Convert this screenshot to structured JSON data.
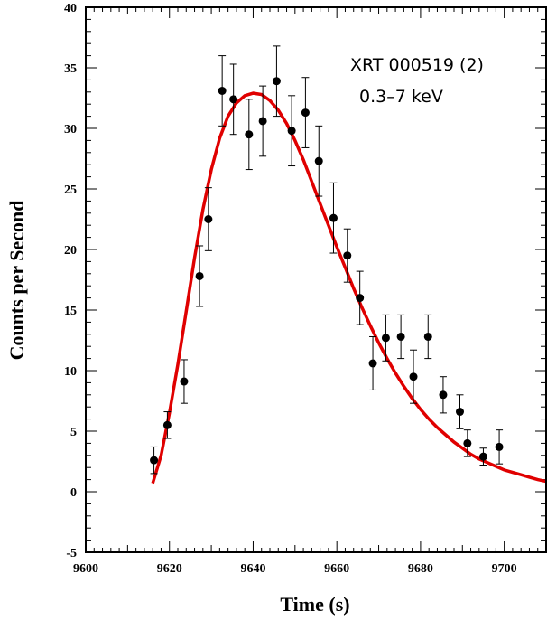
{
  "chart_data": {
    "type": "scatter",
    "xlabel": "Time (s)",
    "ylabel": "Counts per Second",
    "xlim": [
      9600,
      9710
    ],
    "ylim": [
      -5,
      40
    ],
    "x_ticks": [
      9600,
      9620,
      9640,
      9660,
      9680,
      9700
    ],
    "y_ticks": [
      -5,
      0,
      5,
      10,
      15,
      20,
      25,
      30,
      35,
      40
    ],
    "grid": false,
    "annotations": [
      "XRT 000519 (2)",
      "0.3–7 keV"
    ],
    "colors": {
      "points": "#000000",
      "fit": "#e00000"
    },
    "points": [
      {
        "x": 9616.3,
        "y": 2.6,
        "err": 1.1
      },
      {
        "x": 9619.5,
        "y": 5.5,
        "err": 1.1
      },
      {
        "x": 9623.5,
        "y": 9.1,
        "err": 1.8
      },
      {
        "x": 9627.2,
        "y": 17.8,
        "err": 2.5
      },
      {
        "x": 9629.3,
        "y": 22.5,
        "err": 2.6
      },
      {
        "x": 9632.6,
        "y": 33.1,
        "err": 2.9
      },
      {
        "x": 9635.3,
        "y": 32.4,
        "err": 2.9
      },
      {
        "x": 9639.0,
        "y": 29.5,
        "err": 2.9
      },
      {
        "x": 9642.3,
        "y": 30.6,
        "err": 2.9
      },
      {
        "x": 9645.6,
        "y": 33.9,
        "err": 2.9
      },
      {
        "x": 9649.2,
        "y": 29.8,
        "err": 2.9
      },
      {
        "x": 9652.5,
        "y": 31.3,
        "err": 2.9
      },
      {
        "x": 9655.7,
        "y": 27.3,
        "err": 2.9
      },
      {
        "x": 9659.2,
        "y": 22.6,
        "err": 2.9
      },
      {
        "x": 9662.5,
        "y": 19.5,
        "err": 2.2
      },
      {
        "x": 9665.5,
        "y": 16.0,
        "err": 2.2
      },
      {
        "x": 9668.6,
        "y": 10.6,
        "err": 2.2
      },
      {
        "x": 9671.7,
        "y": 12.7,
        "err": 1.9
      },
      {
        "x": 9675.3,
        "y": 12.8,
        "err": 1.8
      },
      {
        "x": 9678.3,
        "y": 9.5,
        "err": 2.2
      },
      {
        "x": 9681.8,
        "y": 12.8,
        "err": 1.8
      },
      {
        "x": 9685.4,
        "y": 8.0,
        "err": 1.5
      },
      {
        "x": 9689.4,
        "y": 6.6,
        "err": 1.4
      },
      {
        "x": 9691.2,
        "y": 4.0,
        "err": 1.1
      },
      {
        "x": 9695.0,
        "y": 2.9,
        "err": 0.7
      },
      {
        "x": 9698.8,
        "y": 3.7,
        "err": 1.4
      }
    ],
    "fit_curve": [
      [
        9616,
        0.7
      ],
      [
        9618,
        3.0
      ],
      [
        9620,
        6.5
      ],
      [
        9622,
        10.5
      ],
      [
        9624,
        14.9
      ],
      [
        9626,
        19.3
      ],
      [
        9628,
        23.3
      ],
      [
        9630,
        26.6
      ],
      [
        9632,
        29.2
      ],
      [
        9634,
        31.0
      ],
      [
        9636,
        32.1
      ],
      [
        9638,
        32.7
      ],
      [
        9640,
        32.9
      ],
      [
        9642,
        32.8
      ],
      [
        9644,
        32.3
      ],
      [
        9646,
        31.5
      ],
      [
        9648,
        30.4
      ],
      [
        9650,
        29.0
      ],
      [
        9652,
        27.4
      ],
      [
        9654,
        25.6
      ],
      [
        9656,
        23.8
      ],
      [
        9658,
        22.0
      ],
      [
        9660,
        20.2
      ],
      [
        9662,
        18.5
      ],
      [
        9664,
        16.8
      ],
      [
        9666,
        15.2
      ],
      [
        9668,
        13.7
      ],
      [
        9670,
        12.3
      ],
      [
        9672,
        11.0
      ],
      [
        9674,
        9.8
      ],
      [
        9676,
        8.7
      ],
      [
        9678,
        7.7
      ],
      [
        9680,
        6.8
      ],
      [
        9682,
        6.0
      ],
      [
        9684,
        5.3
      ],
      [
        9686,
        4.7
      ],
      [
        9688,
        4.1
      ],
      [
        9690,
        3.6
      ],
      [
        9692,
        3.1
      ],
      [
        9694,
        2.7
      ],
      [
        9696,
        2.4
      ],
      [
        9698,
        2.1
      ],
      [
        9700,
        1.8
      ],
      [
        9702,
        1.6
      ],
      [
        9704,
        1.4
      ],
      [
        9706,
        1.2
      ],
      [
        9708,
        1.0
      ],
      [
        9710,
        0.85
      ]
    ]
  }
}
